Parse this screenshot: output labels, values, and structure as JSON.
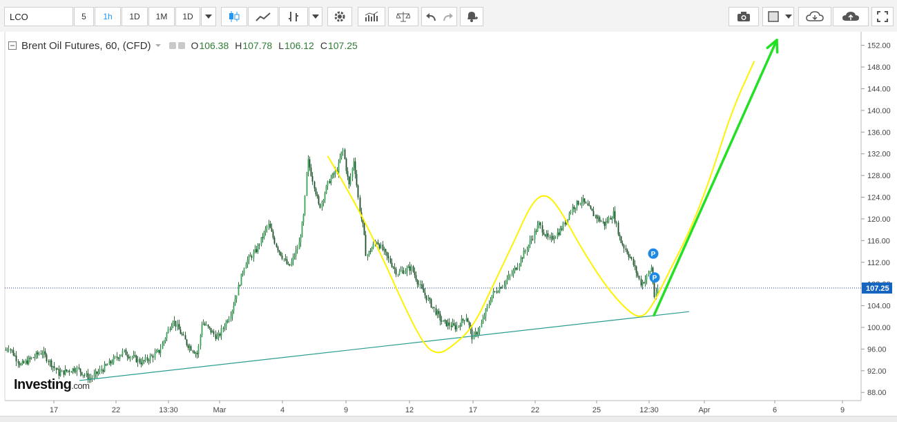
{
  "toolbar": {
    "symbol": "LCO",
    "intervals": [
      "5",
      "1h",
      "1D",
      "1M",
      "1D"
    ],
    "active_interval": "1h",
    "icons_left": [
      "candlestick-icon",
      "line-chart-icon",
      "draw-tool-icon",
      "caret-down-icon",
      "gear-icon",
      "indicators-icon",
      "compare-icon",
      "undo-icon",
      "redo-icon",
      "alert-icon"
    ],
    "icons_right": [
      "camera-icon",
      "square-icon",
      "caret-down-icon",
      "cloud-download-icon",
      "cloud-upload-icon",
      "fullscreen-icon"
    ]
  },
  "legend": {
    "title": "Brent Oil Futures, 60, (CFD)",
    "o_label": "O",
    "o_value": "106.38",
    "h_label": "H",
    "h_value": "107.78",
    "l_label": "L",
    "l_value": "106.12",
    "c_label": "C",
    "c_value": "107.25"
  },
  "logo": {
    "brand": "Investing",
    "suffix": ".com"
  },
  "colors": {
    "up": "#26a69a",
    "down": "#ef5350",
    "candle": "#2f6f3d",
    "trendline": "#2a9d8f",
    "yellow": "#fff200",
    "arrow": "#22e022",
    "price_line": "#1e3a8a",
    "price_tag": "#1565c0",
    "marker": "#1e88e5"
  },
  "chart_data": {
    "type": "candlestick",
    "title": "Brent Oil Futures, 60, (CFD)",
    "x_ticks": [
      "17",
      "22",
      "13:30",
      "Mar",
      "4",
      "9",
      "12",
      "17",
      "22",
      "25",
      "12:30",
      "Apr",
      "6",
      "9"
    ],
    "y_ticks": [
      "152.00",
      "148.00",
      "144.00",
      "140.00",
      "136.00",
      "132.00",
      "128.00",
      "124.00",
      "120.00",
      "116.00",
      "112.00",
      "108.00",
      "104.00",
      "100.00",
      "96.00",
      "92.00",
      "88.00"
    ],
    "ylim": [
      86.5,
      154.5
    ],
    "last_price": "107.25",
    "price_path": [
      [
        0,
        94.5
      ],
      [
        12,
        96.5
      ],
      [
        30,
        93
      ],
      [
        60,
        95.5
      ],
      [
        85,
        91.5
      ],
      [
        110,
        92.5
      ],
      [
        130,
        90.5
      ],
      [
        155,
        93
      ],
      [
        178,
        95.5
      ],
      [
        205,
        93.5
      ],
      [
        230,
        95.5
      ],
      [
        250,
        101.5
      ],
      [
        270,
        97
      ],
      [
        286,
        95
      ],
      [
        292,
        101
      ],
      [
        315,
        98
      ],
      [
        335,
        103
      ],
      [
        355,
        112
      ],
      [
        370,
        114
      ],
      [
        388,
        119
      ],
      [
        400,
        115
      ],
      [
        418,
        111
      ],
      [
        432,
        115
      ],
      [
        440,
        121
      ],
      [
        445,
        131
      ],
      [
        455,
        126
      ],
      [
        462,
        122
      ],
      [
        476,
        127
      ],
      [
        488,
        129
      ],
      [
        496,
        133
      ],
      [
        505,
        126
      ],
      [
        512,
        131
      ],
      [
        520,
        122
      ],
      [
        526,
        118
      ],
      [
        530,
        113
      ],
      [
        545,
        116
      ],
      [
        560,
        113
      ],
      [
        575,
        110
      ],
      [
        595,
        111
      ],
      [
        610,
        107
      ],
      [
        625,
        104
      ],
      [
        640,
        101
      ],
      [
        660,
        100
      ],
      [
        675,
        102
      ],
      [
        684,
        98
      ],
      [
        695,
        100
      ],
      [
        712,
        106
      ],
      [
        728,
        108
      ],
      [
        742,
        110
      ],
      [
        760,
        114
      ],
      [
        780,
        119
      ],
      [
        795,
        116
      ],
      [
        812,
        118
      ],
      [
        828,
        122
      ],
      [
        842,
        123.5
      ],
      [
        858,
        121
      ],
      [
        875,
        119
      ],
      [
        888,
        121
      ],
      [
        898,
        116
      ],
      [
        912,
        113
      ],
      [
        928,
        108
      ],
      [
        935,
        109
      ],
      [
        943,
        111
      ],
      [
        948,
        105
      ],
      [
        952,
        107.25
      ]
    ],
    "support_line": [
      [
        115,
        90.2
      ],
      [
        998,
        102.9
      ]
    ],
    "yellow_curve": [
      [
        475,
        131.5
      ],
      [
        510,
        124
      ],
      [
        550,
        114
      ],
      [
        585,
        104
      ],
      [
        615,
        96.5
      ],
      [
        635,
        95
      ],
      [
        655,
        96.5
      ],
      [
        685,
        100
      ],
      [
        715,
        108
      ],
      [
        745,
        116
      ],
      [
        770,
        123
      ],
      [
        790,
        124.8
      ],
      [
        810,
        122
      ],
      [
        840,
        115
      ],
      [
        875,
        108
      ],
      [
        905,
        103.5
      ],
      [
        928,
        101.5
      ],
      [
        945,
        104
      ],
      [
        968,
        110
      ],
      [
        1000,
        118
      ],
      [
        1030,
        128
      ],
      [
        1060,
        140
      ],
      [
        1092,
        149
      ]
    ],
    "green_arrow": {
      "from": [
        947,
        102.2
      ],
      "to": [
        1125,
        153
      ]
    },
    "markers": [
      {
        "label": "P",
        "x": 946,
        "y": 113.6
      },
      {
        "label": "P",
        "x": 948,
        "y": 109.2
      }
    ]
  }
}
